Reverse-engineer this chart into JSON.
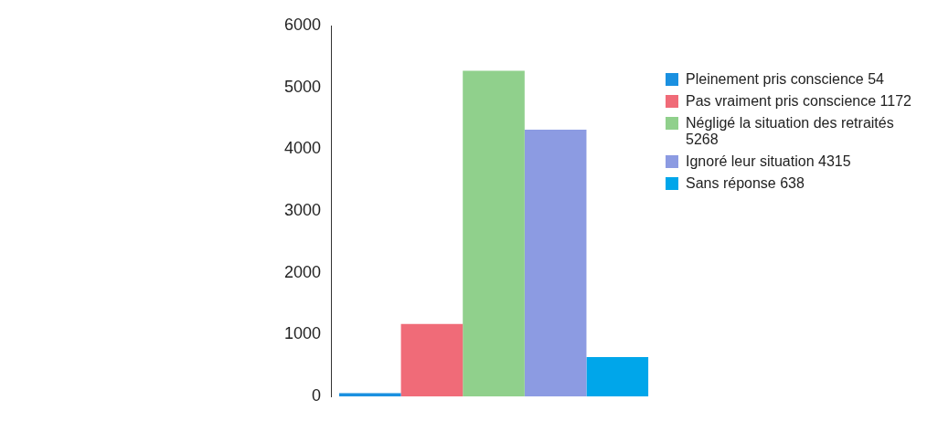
{
  "chart_data": {
    "type": "bar",
    "categories": [
      null
    ],
    "series": [
      {
        "name": "Pleinement pris conscience 54",
        "color": "#1a90e0",
        "values": [
          54
        ]
      },
      {
        "name": "Pas vraiment pris conscience 1172",
        "color": "#f06b78",
        "values": [
          1172
        ]
      },
      {
        "name": "Négligé la situation des retraités 5268",
        "color": "#90d08c",
        "values": [
          5268
        ]
      },
      {
        "name": "Ignoré leur situation 4315",
        "color": "#8c9be2",
        "values": [
          4315
        ]
      },
      {
        "name": "Sans réponse 638",
        "color": "#00a6ea",
        "values": [
          638
        ]
      }
    ],
    "ylim": [
      0,
      6000
    ],
    "yticks": [
      0,
      1000,
      2000,
      3000,
      4000,
      5000,
      6000
    ],
    "grid": false,
    "legend": "right"
  }
}
